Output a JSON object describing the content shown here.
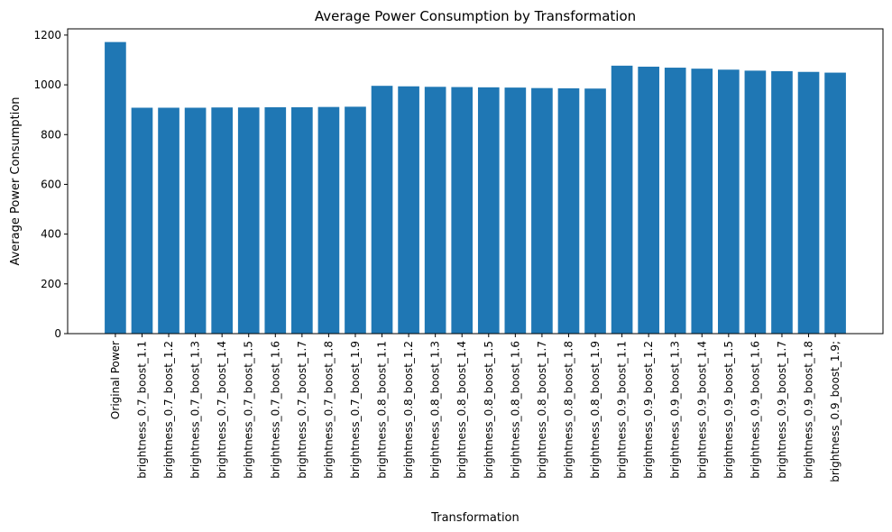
{
  "chart_data": {
    "type": "bar",
    "title": "Average Power Consumption by Transformation",
    "xlabel": "Transformation",
    "ylabel": "Average Power Consumption",
    "ylim": [
      0,
      1225
    ],
    "yticks": [
      0,
      200,
      400,
      600,
      800,
      1000,
      1200
    ],
    "bar_color": "#1f77b4",
    "grid": false,
    "categories": [
      "Original Power",
      "brightness_0.7_boost_1.1",
      "brightness_0.7_boost_1.2",
      "brightness_0.7_boost_1.3",
      "brightness_0.7_boost_1.4",
      "brightness_0.7_boost_1.5",
      "brightness_0.7_boost_1.6",
      "brightness_0.7_boost_1.7",
      "brightness_0.7_boost_1.8",
      "brightness_0.7_boost_1.9",
      "brightness_0.8_boost_1.1",
      "brightness_0.8_boost_1.2",
      "brightness_0.8_boost_1.3",
      "brightness_0.8_boost_1.4",
      "brightness_0.8_boost_1.5",
      "brightness_0.8_boost_1.6",
      "brightness_0.8_boost_1.7",
      "brightness_0.8_boost_1.8",
      "brightness_0.8_boost_1.9",
      "brightness_0.9_boost_1.1",
      "brightness_0.9_boost_1.2",
      "brightness_0.9_boost_1.3",
      "brightness_0.9_boost_1.4",
      "brightness_0.9_boost_1.5",
      "brightness_0.9_boost_1.6",
      "brightness_0.9_boost_1.7",
      "brightness_0.9_boost_1.8",
      "brightness_0.9_boost_1.9;"
    ],
    "values": [
      1172,
      908,
      908,
      908,
      909,
      909,
      910,
      910,
      911,
      912,
      996,
      994,
      992,
      991,
      990,
      989,
      987,
      986,
      985,
      1077,
      1073,
      1069,
      1065,
      1061,
      1057,
      1055,
      1052,
      1049
    ]
  }
}
